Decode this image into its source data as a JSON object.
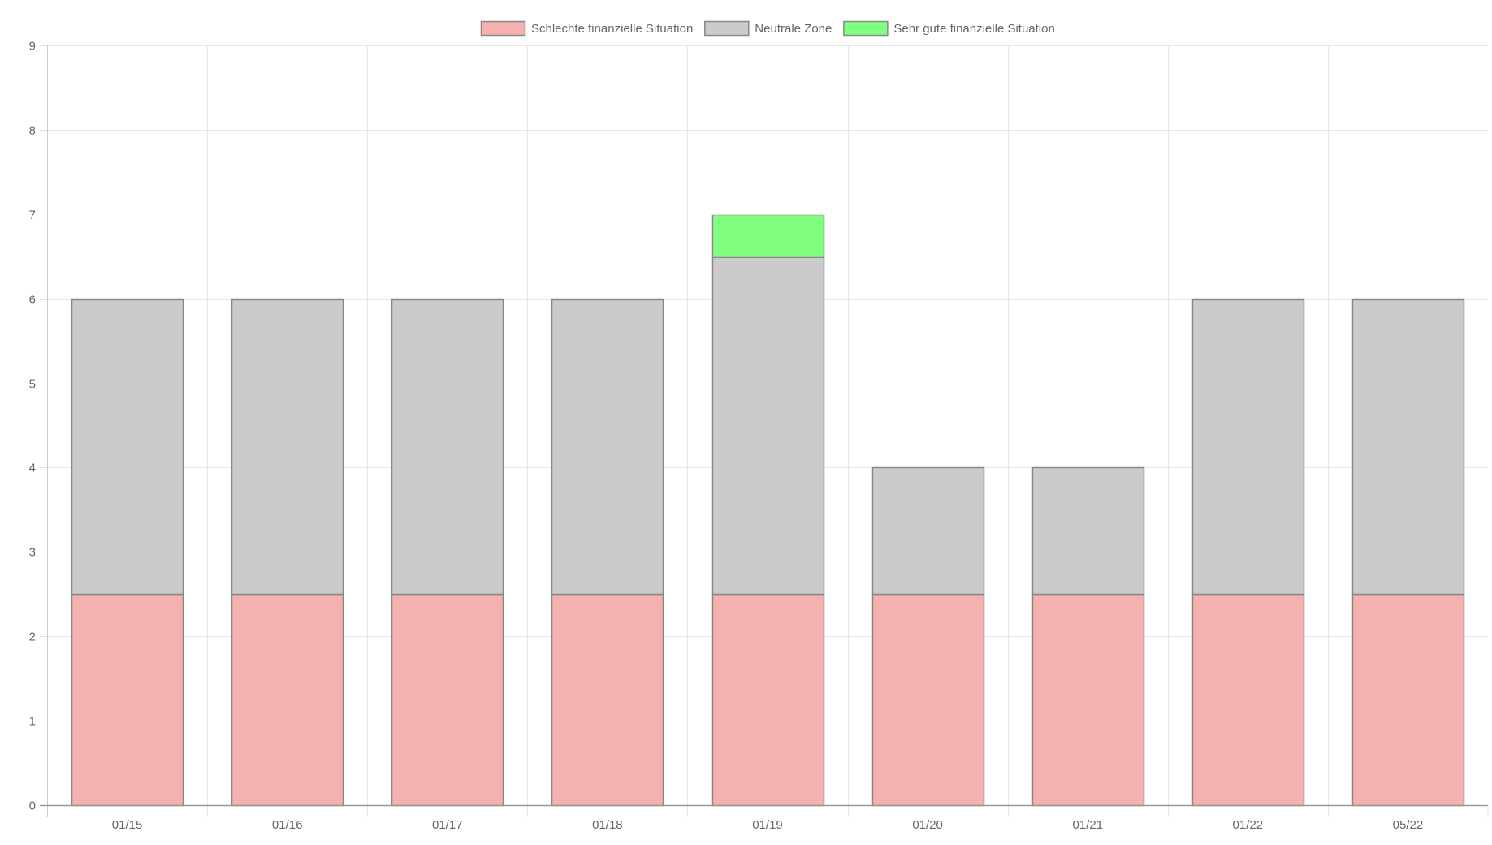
{
  "chart_data": {
    "type": "bar",
    "stacked": true,
    "categories": [
      "01/15",
      "01/16",
      "01/17",
      "01/18",
      "01/19",
      "01/20",
      "01/21",
      "01/22",
      "05/22"
    ],
    "series": [
      {
        "name": "Schlechte finanzielle Situation",
        "color": "#f5b0b0",
        "values": [
          2.5,
          2.5,
          2.5,
          2.5,
          2.5,
          2.5,
          2.5,
          2.5,
          2.5
        ]
      },
      {
        "name": "Neutrale Zone",
        "color": "#cbcbcb",
        "values": [
          3.5,
          3.5,
          3.5,
          3.5,
          4,
          1.5,
          1.5,
          3.5,
          3.5
        ]
      },
      {
        "name": "Sehr gute finanzielle Situation",
        "color": "#80ff80",
        "values": [
          0,
          0,
          0,
          0,
          0.5,
          0,
          0,
          0,
          0
        ]
      }
    ],
    "ylim": [
      0,
      9
    ],
    "yticks": [
      0,
      1,
      2,
      3,
      4,
      5,
      6,
      7,
      8,
      9
    ],
    "grid": true,
    "legend_position": "top-center",
    "border_color": "#888888",
    "title": "",
    "xlabel": "",
    "ylabel": ""
  }
}
